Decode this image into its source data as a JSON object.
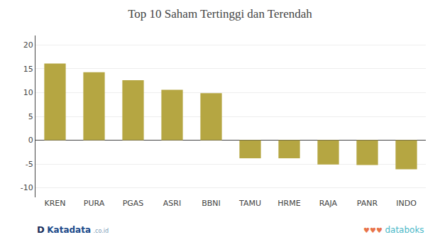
{
  "chart_data": {
    "type": "bar",
    "title": "Top 10 Saham Tertinggi dan Terendah",
    "categories": [
      "KREN",
      "PURA",
      "PGAS",
      "ASRI",
      "BBNI",
      "TAMU",
      "HRME",
      "RAJA",
      "PANR",
      "INDO"
    ],
    "values": [
      16.1,
      14.3,
      12.6,
      10.6,
      9.9,
      -3.8,
      -3.8,
      -5.1,
      -5.2,
      -6.1
    ],
    "color": "#b5a642",
    "ylim": [
      -12,
      22
    ],
    "yticks": [
      -10,
      -5,
      0,
      5,
      10,
      15,
      20
    ],
    "grid": true,
    "annotations": [
      {
        "text": "D",
        "color": "#1a2f5a"
      },
      {
        "text": "Katadata",
        "color": "#1a4a8a"
      },
      {
        "text": ".co.id",
        "color": "#7a9ab5"
      },
      {
        "text": "♥♥♥",
        "color": "#e8734a"
      },
      {
        "text": "databoks",
        "color": "#4ab8c8"
      }
    ]
  }
}
